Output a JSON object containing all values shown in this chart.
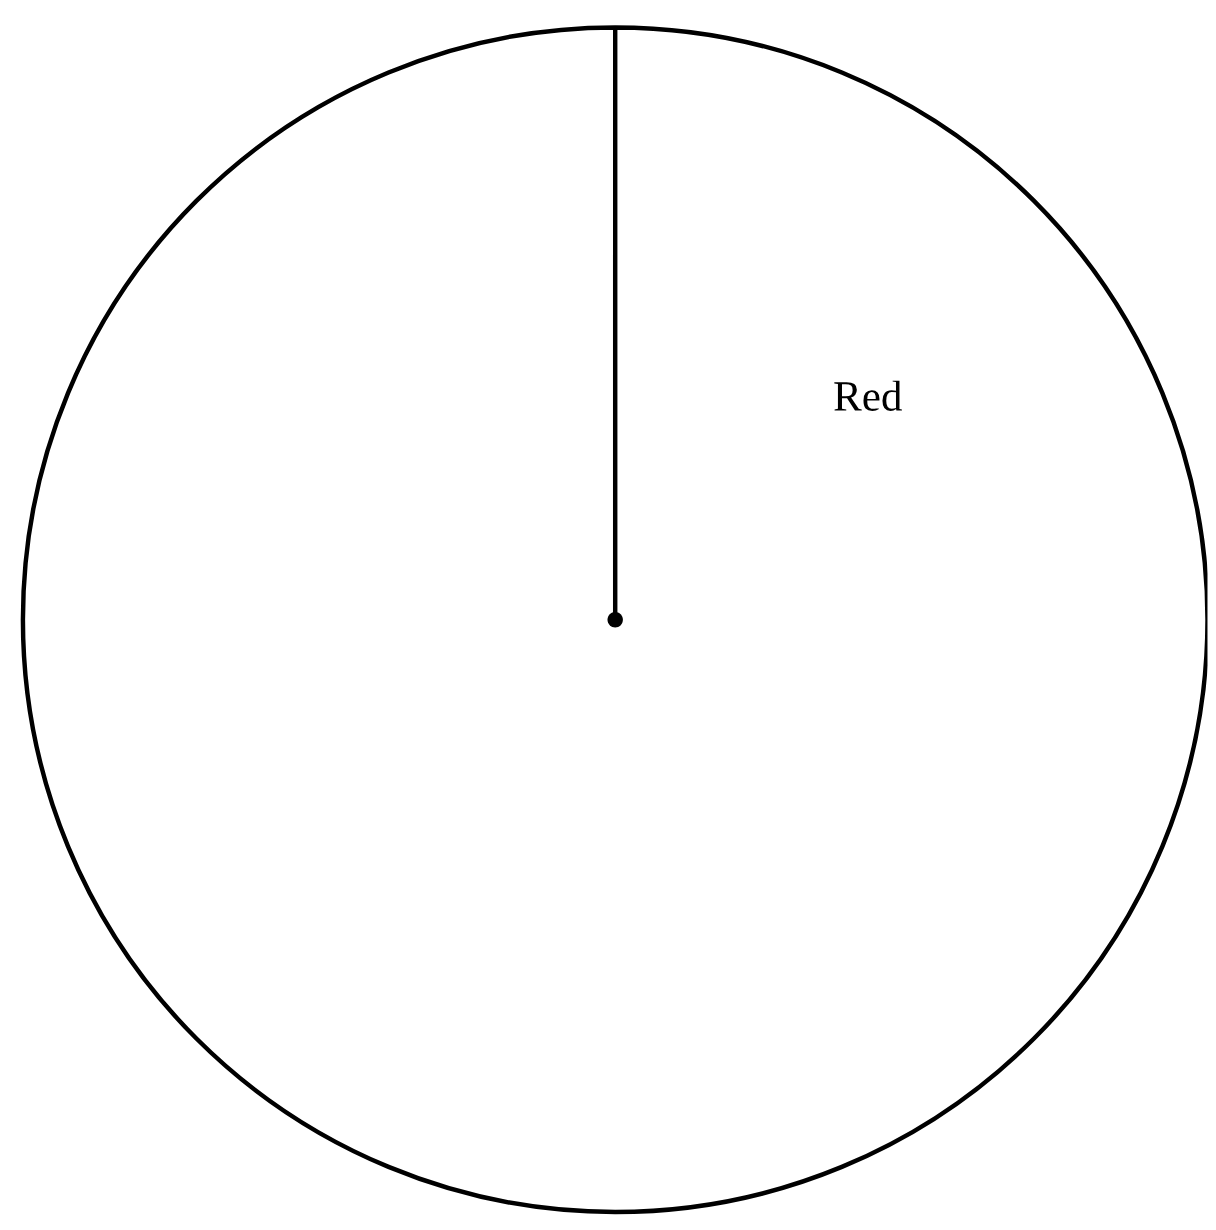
{
  "chart_data": {
    "type": "pie",
    "categories": [
      "Red"
    ],
    "values": [
      100
    ],
    "colors": [
      "#ffffff"
    ]
  }
}
